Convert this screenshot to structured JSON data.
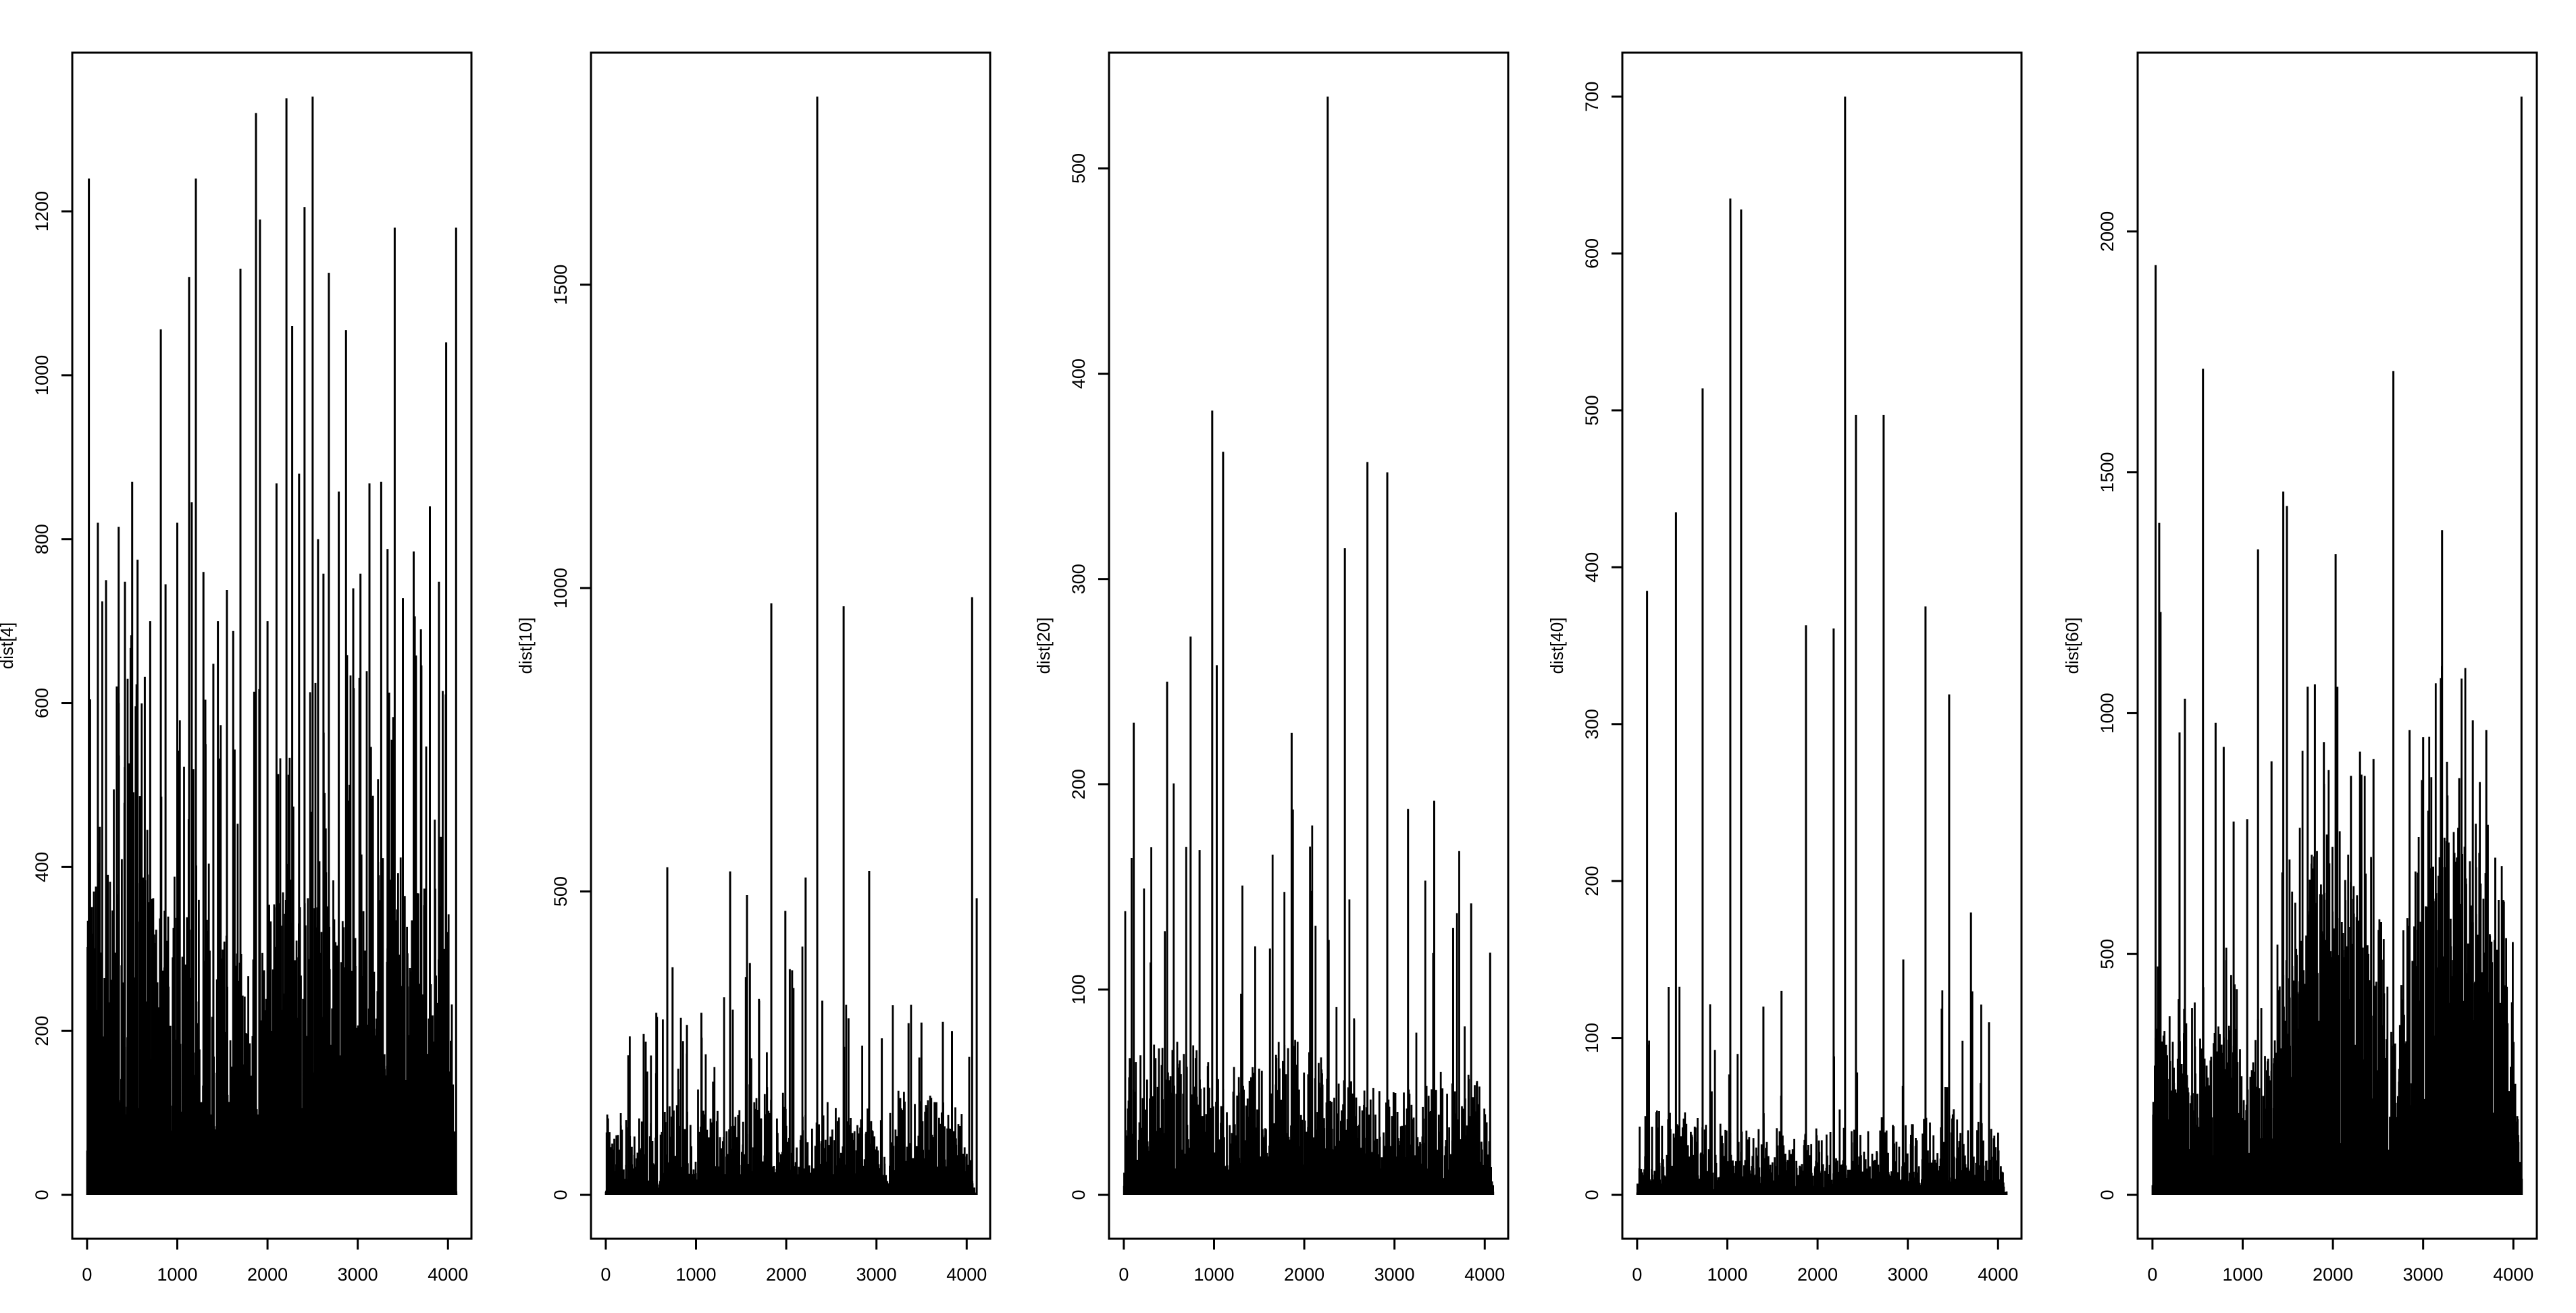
{
  "figure": {
    "background": "#ffffff",
    "ink": "#000000",
    "panel_count": 5,
    "description": "Five R base-graphics spike plots (type h) of dist[] series vs index"
  },
  "chart_data": [
    {
      "type": "bar",
      "subtype": "spike",
      "name": "dist4",
      "title": "",
      "xlabel": "",
      "ylabel": "dist[4]",
      "x_range": [
        0,
        4096
      ],
      "xticks": [
        0,
        1000,
        2000,
        3000,
        4000
      ],
      "yticks": [
        0,
        200,
        400,
        600,
        800,
        1000,
        1200
      ],
      "ymax": 1340,
      "grid": false,
      "legend": "none",
      "peaks": [
        [
          20,
          1240
        ],
        [
          120,
          820
        ],
        [
          210,
          750
        ],
        [
          350,
          815
        ],
        [
          420,
          748
        ],
        [
          500,
          870
        ],
        [
          560,
          775
        ],
        [
          640,
          632
        ],
        [
          700,
          700
        ],
        [
          817,
          1056
        ],
        [
          870,
          745
        ],
        [
          1000,
          820
        ],
        [
          1131,
          1120
        ],
        [
          1160,
          845
        ],
        [
          1206,
          1240
        ],
        [
          1290,
          760
        ],
        [
          1400,
          648
        ],
        [
          1450,
          700
        ],
        [
          1550,
          738
        ],
        [
          1620,
          688
        ],
        [
          1700,
          1130
        ],
        [
          1872,
          1320
        ],
        [
          1916,
          1190
        ],
        [
          2000,
          700
        ],
        [
          2100,
          868
        ],
        [
          2210,
          1338
        ],
        [
          2273,
          1060
        ],
        [
          2350,
          880
        ],
        [
          2410,
          1205
        ],
        [
          2500,
          1340
        ],
        [
          2560,
          800
        ],
        [
          2620,
          758
        ],
        [
          2680,
          1125
        ],
        [
          2790,
          858
        ],
        [
          2870,
          1055
        ],
        [
          2950,
          740
        ],
        [
          3030,
          758
        ],
        [
          3130,
          868
        ],
        [
          3260,
          870
        ],
        [
          3330,
          788
        ],
        [
          3410,
          1180
        ],
        [
          3500,
          728
        ],
        [
          3620,
          785
        ],
        [
          3700,
          690
        ],
        [
          3800,
          840
        ],
        [
          3900,
          748
        ],
        [
          3980,
          1040
        ],
        [
          4090,
          1180
        ]
      ],
      "noise": {
        "n": 1500,
        "exp_mean": 75,
        "mid_prob": 0.34,
        "mid_lo": 90,
        "mid_hi": 430,
        "rare_prob": 0.05,
        "rare_lo": 440,
        "rare_hi": 760,
        "seed": 101,
        "env_strength": 0.25
      }
    },
    {
      "type": "bar",
      "subtype": "spike",
      "name": "dist10",
      "title": "",
      "xlabel": "",
      "ylabel": "dist[10]",
      "x_range": [
        0,
        4096
      ],
      "xticks": [
        0,
        1000,
        2000,
        3000,
        4000
      ],
      "yticks": [
        0,
        500,
        1000,
        1500
      ],
      "ymax": 1810,
      "grid": false,
      "legend": "none",
      "peaks": [
        [
          250,
          230
        ],
        [
          420,
          265
        ],
        [
          560,
          300
        ],
        [
          682,
          540
        ],
        [
          740,
          375
        ],
        [
          900,
          280
        ],
        [
          1060,
          300
        ],
        [
          1378,
          533
        ],
        [
          1565,
          494
        ],
        [
          1597,
          382
        ],
        [
          1700,
          320
        ],
        [
          1835,
          975
        ],
        [
          1990,
          468
        ],
        [
          2040,
          372
        ],
        [
          2065,
          370
        ],
        [
          2215,
          523
        ],
        [
          2344,
          1810
        ],
        [
          2400,
          320
        ],
        [
          2636,
          970
        ],
        [
          2690,
          291
        ],
        [
          2919,
          534
        ],
        [
          3059,
          258
        ],
        [
          3356,
          283
        ],
        [
          3499,
          284
        ],
        [
          3736,
          285
        ],
        [
          3837,
          270
        ],
        [
          4060,
          985
        ],
        [
          4111,
          489
        ]
      ],
      "noise": {
        "n": 1400,
        "exp_mean": 26,
        "mid_prob": 0.2,
        "mid_lo": 40,
        "mid_hi": 180,
        "rare_prob": 0.025,
        "rare_lo": 190,
        "rare_hi": 420,
        "seed": 202,
        "env_strength": 0.3
      }
    },
    {
      "type": "bar",
      "subtype": "spike",
      "name": "dist20",
      "title": "",
      "xlabel": "",
      "ylabel": "dist[20]",
      "x_range": [
        0,
        4096
      ],
      "xticks": [
        0,
        1000,
        2000,
        3000,
        4000
      ],
      "yticks": [
        0,
        100,
        200,
        300,
        400,
        500
      ],
      "ymax": 535,
      "grid": false,
      "legend": "none",
      "peaks": [
        [
          110,
          230
        ],
        [
          480,
          250
        ],
        [
          740,
          272
        ],
        [
          840,
          168
        ],
        [
          980,
          382
        ],
        [
          1030,
          258
        ],
        [
          1100,
          362
        ],
        [
          1300,
          98
        ],
        [
          1620,
          120
        ],
        [
          1860,
          225
        ],
        [
          2070,
          148
        ],
        [
          2260,
          535
        ],
        [
          2450,
          315
        ],
        [
          2700,
          357
        ],
        [
          2920,
          352
        ],
        [
          3150,
          188
        ],
        [
          3440,
          192
        ],
        [
          3650,
          130
        ],
        [
          3850,
          142
        ],
        [
          4060,
          118
        ]
      ],
      "noise": {
        "n": 1500,
        "exp_mean": 12,
        "mid_prob": 0.26,
        "mid_lo": 16,
        "mid_hi": 78,
        "rare_prob": 0.02,
        "rare_lo": 80,
        "rare_hi": 230,
        "seed": 303,
        "env_strength": 0.4
      }
    },
    {
      "type": "bar",
      "subtype": "spike",
      "name": "dist40",
      "title": "",
      "xlabel": "",
      "ylabel": "dist[40]",
      "x_range": [
        0,
        4096
      ],
      "xticks": [
        0,
        1000,
        2000,
        3000,
        4000
      ],
      "yticks": [
        0,
        100,
        200,
        300,
        400,
        500,
        600,
        700
      ],
      "ymax": 700,
      "grid": false,
      "legend": "none",
      "peaks": [
        [
          110,
          385
        ],
        [
          430,
          435
        ],
        [
          726,
          514
        ],
        [
          1033,
          635
        ],
        [
          1153,
          628
        ],
        [
          1400,
          120
        ],
        [
          1600,
          130
        ],
        [
          1871,
          363
        ],
        [
          2178,
          361
        ],
        [
          2305,
          700
        ],
        [
          2425,
          497
        ],
        [
          2732,
          497
        ],
        [
          2950,
          150
        ],
        [
          3196,
          375
        ],
        [
          3458,
          319
        ],
        [
          3700,
          180
        ],
        [
          3900,
          110
        ]
      ],
      "noise": {
        "n": 1400,
        "exp_mean": 8,
        "mid_prob": 0.22,
        "mid_lo": 12,
        "mid_hi": 55,
        "rare_prob": 0.018,
        "rare_lo": 60,
        "rare_hi": 140,
        "seed": 404,
        "env_strength": 0.3
      }
    },
    {
      "type": "bar",
      "subtype": "spike",
      "name": "dist60",
      "title": "",
      "xlabel": "",
      "ylabel": "dist[60]",
      "x_range": [
        0,
        4096
      ],
      "xticks": [
        0,
        1000,
        2000,
        3000,
        4000
      ],
      "yticks": [
        0,
        500,
        1000,
        1500,
        2000
      ],
      "ymax": 2280,
      "grid": false,
      "legend": "none",
      "peaks": [
        [
          35,
          1930
        ],
        [
          75,
          1395
        ],
        [
          90,
          1210
        ],
        [
          300,
          960
        ],
        [
          360,
          1030
        ],
        [
          560,
          1715
        ],
        [
          700,
          980
        ],
        [
          790,
          930
        ],
        [
          900,
          775
        ],
        [
          1050,
          780
        ],
        [
          1170,
          1340
        ],
        [
          1320,
          900
        ],
        [
          1450,
          1460
        ],
        [
          1490,
          1430
        ],
        [
          1720,
          1055
        ],
        [
          1800,
          1060
        ],
        [
          1900,
          940
        ],
        [
          2030,
          1330
        ],
        [
          2200,
          870
        ],
        [
          2300,
          920
        ],
        [
          2450,
          905
        ],
        [
          2670,
          1710
        ],
        [
          2850,
          965
        ],
        [
          3000,
          950
        ],
        [
          3210,
          1380
        ],
        [
          3400,
          865
        ],
        [
          3550,
          985
        ],
        [
          3700,
          965
        ],
        [
          3800,
          700
        ],
        [
          4090,
          2280
        ]
      ],
      "noise": {
        "n": 1500,
        "exp_mean": 60,
        "mid_prob": 0.55,
        "mid_lo": 60,
        "mid_hi": 780,
        "rare_prob": 0.05,
        "rare_lo": 800,
        "rare_hi": 1150,
        "seed": 505,
        "env_strength": 0.8
      }
    }
  ]
}
